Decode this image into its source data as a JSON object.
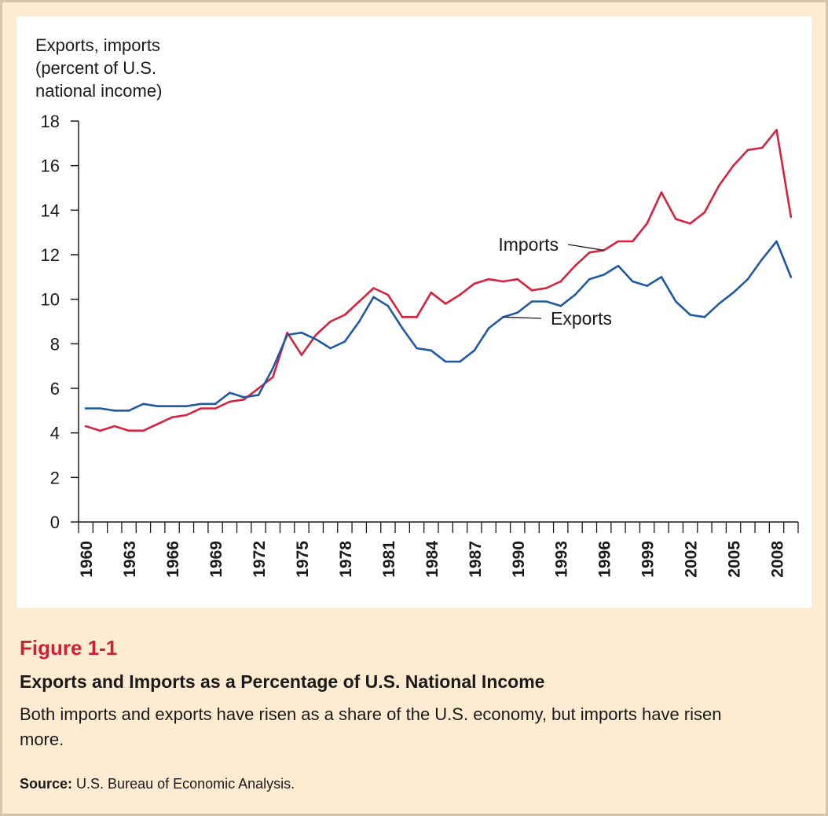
{
  "figure": {
    "number": "Figure 1-1",
    "title": "Exports and Imports as a Percentage of U.S. National Income",
    "description": "Both imports and exports have risen as a share of the U.S. economy, but imports have risen more.",
    "source_label": "Source:",
    "source_text": "U.S. Bureau of Economic Analysis."
  },
  "colors": {
    "imports": "#d6213f",
    "exports": "#1f5aa0",
    "axis": "#1a1a1a",
    "panel": "#fdebd2"
  },
  "chart_data": {
    "type": "line",
    "title": "",
    "ylabel_lines": [
      "Exports, imports",
      "(percent of U.S.",
      "national income)"
    ],
    "xlabel": "",
    "ylim": [
      0,
      18
    ],
    "yticks": [
      0,
      2,
      4,
      6,
      8,
      10,
      12,
      14,
      16,
      18
    ],
    "xlim": [
      1960,
      2009
    ],
    "xtick_labels": [
      1960,
      1963,
      1966,
      1969,
      1972,
      1975,
      1978,
      1981,
      1984,
      1987,
      1990,
      1993,
      1996,
      1999,
      2002,
      2005,
      2008
    ],
    "grid": false,
    "x": [
      1960,
      1961,
      1962,
      1963,
      1964,
      1965,
      1966,
      1967,
      1968,
      1969,
      1970,
      1971,
      1972,
      1973,
      1974,
      1975,
      1976,
      1977,
      1978,
      1979,
      1980,
      1981,
      1982,
      1983,
      1984,
      1985,
      1986,
      1987,
      1988,
      1989,
      1990,
      1991,
      1992,
      1993,
      1994,
      1995,
      1996,
      1997,
      1998,
      1999,
      2000,
      2001,
      2002,
      2003,
      2004,
      2005,
      2006,
      2007,
      2008,
      2009
    ],
    "series": [
      {
        "name": "Imports",
        "color_key": "imports",
        "values": [
          4.3,
          4.1,
          4.3,
          4.1,
          4.1,
          4.4,
          4.7,
          4.8,
          5.1,
          5.1,
          5.4,
          5.5,
          6.0,
          6.5,
          8.5,
          7.5,
          8.4,
          9.0,
          9.3,
          9.9,
          10.5,
          10.2,
          9.2,
          9.2,
          10.3,
          9.8,
          10.2,
          10.7,
          10.9,
          10.8,
          10.9,
          10.4,
          10.5,
          10.8,
          11.5,
          12.1,
          12.2,
          12.6,
          12.6,
          13.4,
          14.8,
          13.6,
          13.4,
          13.9,
          15.1,
          16.0,
          16.7,
          16.8,
          17.6,
          13.7
        ]
      },
      {
        "name": "Exports",
        "color_key": "exports",
        "values": [
          5.1,
          5.1,
          5.0,
          5.0,
          5.3,
          5.2,
          5.2,
          5.2,
          5.3,
          5.3,
          5.8,
          5.6,
          5.7,
          6.9,
          8.4,
          8.5,
          8.2,
          7.8,
          8.1,
          9.0,
          10.1,
          9.7,
          8.7,
          7.8,
          7.7,
          7.2,
          7.2,
          7.7,
          8.7,
          9.2,
          9.4,
          9.9,
          9.9,
          9.7,
          10.2,
          10.9,
          11.1,
          11.5,
          10.8,
          10.6,
          11.0,
          9.9,
          9.3,
          9.2,
          9.8,
          10.3,
          10.9,
          11.8,
          12.6,
          11.0
        ]
      }
    ],
    "annotations": [
      {
        "text": "Imports",
        "series": "Imports",
        "x": 1996,
        "y": 12.2
      },
      {
        "text": "Exports",
        "series": "Exports",
        "x": 1989,
        "y": 9.2
      }
    ]
  }
}
